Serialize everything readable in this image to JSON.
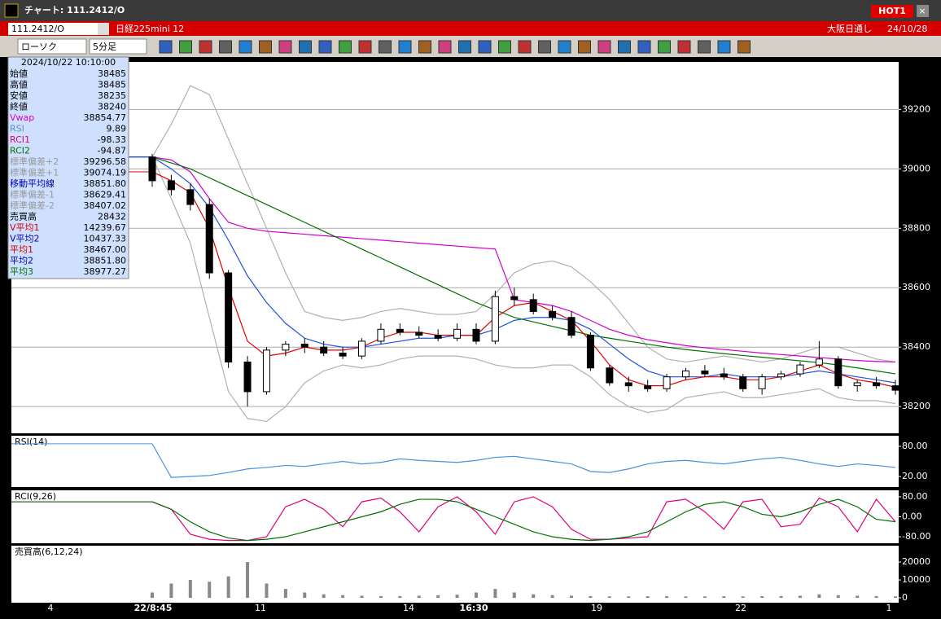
{
  "window": {
    "title": "チャート: 111.2412/O",
    "hot": "HOT1",
    "symbol": "111.2412/O",
    "name": "日経225mini 12",
    "session": "大阪日通し",
    "date": "24/10/28",
    "chart_type": "ローソク",
    "interval": "5分足"
  },
  "info": {
    "datetime": "2024/10/22  10:10:00",
    "rows": [
      {
        "label": "始値",
        "value": "38485",
        "color": "#000"
      },
      {
        "label": "高値",
        "value": "38485",
        "color": "#000"
      },
      {
        "label": "安値",
        "value": "38235",
        "color": "#000"
      },
      {
        "label": "終値",
        "value": "38240",
        "color": "#000"
      },
      {
        "label": "Vwap",
        "value": "38854.77",
        "color": "#d000d0"
      },
      {
        "label": "RSI",
        "value": "9.89",
        "color": "#5a8fd0"
      },
      {
        "label": "RCI1",
        "value": "-98.33",
        "color": "#e0007a"
      },
      {
        "label": "RCI2",
        "value": "-94.87",
        "color": "#007000"
      },
      {
        "label": "標準偏差+2",
        "value": "39296.58",
        "color": "#999"
      },
      {
        "label": "標準偏差+1",
        "value": "39074.19",
        "color": "#999"
      },
      {
        "label": "移動平均線",
        "value": "38851.80",
        "color": "#0000c0"
      },
      {
        "label": "標準偏差-1",
        "value": "38629.41",
        "color": "#999"
      },
      {
        "label": "標準偏差-2",
        "value": "38407.02",
        "color": "#999"
      },
      {
        "label": "売買高",
        "value": "28432",
        "color": "#000"
      },
      {
        "label": "V平均1",
        "value": "14239.67",
        "color": "#d00000"
      },
      {
        "label": "V平均2",
        "value": "10437.33",
        "color": "#0000c0"
      },
      {
        "label": "平均1",
        "value": "38467.00",
        "color": "#d00000"
      },
      {
        "label": "平均2",
        "value": "38851.80",
        "color": "#0000c0"
      },
      {
        "label": "平均3",
        "value": "38977.27",
        "color": "#007000"
      }
    ]
  },
  "chart_data": [
    {
      "type": "candlestick",
      "open": [
        39040,
        38960,
        38930,
        38880,
        38650,
        38350,
        38250,
        38390,
        38410,
        38400,
        38380,
        38370,
        38420,
        38460,
        38450,
        38440,
        38430,
        38460,
        38420,
        38570,
        38560,
        38520,
        38500,
        38440,
        38330,
        38280,
        38270,
        38260,
        38300,
        38320,
        38310,
        38300,
        38260,
        38300,
        38310,
        38340,
        38360,
        38270,
        38280,
        38270
      ],
      "high": [
        39050,
        38980,
        38950,
        38900,
        38660,
        38370,
        38400,
        38420,
        38430,
        38420,
        38400,
        38430,
        38480,
        38480,
        38470,
        38460,
        38480,
        38480,
        38590,
        38600,
        38580,
        38540,
        38520,
        38450,
        38340,
        38300,
        38290,
        38310,
        38330,
        38340,
        38330,
        38310,
        38310,
        38320,
        38350,
        38420,
        38370,
        38290,
        38300,
        38290
      ],
      "low": [
        38940,
        38910,
        38860,
        38630,
        38330,
        38200,
        38240,
        38370,
        38380,
        38370,
        38360,
        38360,
        38410,
        38440,
        38430,
        38420,
        38420,
        38410,
        38410,
        38540,
        38510,
        38490,
        38430,
        38320,
        38270,
        38250,
        38250,
        38250,
        38290,
        38300,
        38290,
        38250,
        38240,
        38290,
        38300,
        38330,
        38260,
        38250,
        38260,
        38240
      ],
      "close": [
        38960,
        38930,
        38880,
        38650,
        38350,
        38250,
        38390,
        38410,
        38400,
        38380,
        38370,
        38420,
        38460,
        38450,
        38440,
        38430,
        38460,
        38420,
        38570,
        38560,
        38520,
        38500,
        38440,
        38330,
        38280,
        38270,
        38260,
        38300,
        38320,
        38310,
        38300,
        38260,
        38300,
        38310,
        38340,
        38360,
        38270,
        38280,
        38270,
        38255
      ],
      "series": [
        {
          "color": "#b0b0b0",
          "values": [
            39040,
            39150,
            39280,
            39250,
            39100,
            38950,
            38800,
            38650,
            38520,
            38500,
            38490,
            38500,
            38520,
            38530,
            38520,
            38510,
            38510,
            38520,
            38580,
            38650,
            38680,
            38690,
            38670,
            38620,
            38560,
            38480,
            38400,
            38360,
            38350,
            38360,
            38370,
            38360,
            38350,
            38360,
            38380,
            38400,
            38400,
            38380,
            38360,
            38350
          ]
        },
        {
          "color": "#b0b0b0",
          "values": [
            39040,
            38900,
            38750,
            38500,
            38250,
            38160,
            38150,
            38200,
            38280,
            38320,
            38340,
            38330,
            38340,
            38360,
            38370,
            38370,
            38370,
            38360,
            38340,
            38330,
            38330,
            38340,
            38340,
            38300,
            38240,
            38200,
            38180,
            38190,
            38230,
            38240,
            38250,
            38230,
            38230,
            38240,
            38250,
            38260,
            38230,
            38220,
            38220,
            38210
          ]
        },
        {
          "color": "#d000d0",
          "values": [
            39040,
            39030,
            38990,
            38900,
            38820,
            38800,
            38790,
            38785,
            38780,
            38775,
            38770,
            38765,
            38760,
            38755,
            38750,
            38745,
            38740,
            38735,
            38730,
            38560,
            38550,
            38540,
            38520,
            38490,
            38460,
            38440,
            38425,
            38415,
            38405,
            38398,
            38392,
            38386,
            38380,
            38375,
            38370,
            38365,
            38360,
            38355,
            38352,
            38350
          ]
        },
        {
          "color": "#007000",
          "values": [
            39040,
            39020,
            39000,
            38970,
            38940,
            38910,
            38880,
            38850,
            38820,
            38790,
            38760,
            38730,
            38700,
            38670,
            38640,
            38610,
            38580,
            38550,
            38525,
            38500,
            38485,
            38470,
            38455,
            38440,
            38430,
            38420,
            38410,
            38400,
            38392,
            38385,
            38378,
            38372,
            38366,
            38360,
            38354,
            38348,
            38340,
            38330,
            38320,
            38310
          ]
        },
        {
          "color": "#2050e0",
          "values": [
            39040,
            39000,
            38950,
            38870,
            38760,
            38640,
            38550,
            38480,
            38430,
            38410,
            38400,
            38400,
            38410,
            38420,
            38430,
            38430,
            38440,
            38440,
            38460,
            38490,
            38500,
            38500,
            38490,
            38460,
            38410,
            38360,
            38320,
            38300,
            38300,
            38300,
            38310,
            38300,
            38300,
            38300,
            38310,
            38320,
            38310,
            38300,
            38290,
            38280
          ]
        },
        {
          "color": "#e00000",
          "values": [
            38990,
            38960,
            38920,
            38800,
            38600,
            38420,
            38370,
            38380,
            38400,
            38390,
            38390,
            38400,
            38430,
            38450,
            38450,
            38440,
            38440,
            38440,
            38500,
            38540,
            38550,
            38520,
            38490,
            38420,
            38340,
            38290,
            38270,
            38270,
            38290,
            38300,
            38300,
            38290,
            38290,
            38300,
            38320,
            38340,
            38310,
            38290,
            38280,
            38265
          ]
        }
      ],
      "ylim": [
        38110,
        39360
      ],
      "yticks": [
        39200,
        39000,
        38800,
        38600,
        38400,
        38200
      ],
      "x_labels": [
        "4",
        "22/8:45",
        "11",
        "14",
        "16:30",
        "19",
        "22",
        "1"
      ]
    },
    {
      "type": "line",
      "title": "RSI(14)",
      "series": [
        {
          "color": "#4a90e0",
          "values": [
            85,
            18,
            20,
            22,
            28,
            35,
            38,
            42,
            40,
            45,
            50,
            45,
            48,
            55,
            52,
            50,
            48,
            52,
            58,
            60,
            55,
            50,
            45,
            30,
            28,
            35,
            45,
            50,
            52,
            48,
            45,
            50,
            55,
            58,
            52,
            45,
            40,
            45,
            42,
            38
          ]
        }
      ],
      "ylim": [
        -1,
        101
      ],
      "yticks": [
        {
          "value": 80,
          "label": "80.00"
        },
        {
          "value": 20,
          "label": "20.00"
        }
      ]
    },
    {
      "type": "line",
      "title": "RCI(9,26)",
      "series": [
        {
          "color": "#e0007a",
          "values": [
            60,
            30,
            -70,
            -90,
            -95,
            -95,
            -80,
            40,
            70,
            30,
            -40,
            60,
            75,
            20,
            -60,
            40,
            80,
            20,
            -70,
            60,
            80,
            40,
            -50,
            -90,
            -90,
            -85,
            -80,
            60,
            70,
            20,
            -50,
            60,
            70,
            -40,
            -30,
            75,
            40,
            -60,
            70,
            -20
          ]
        },
        {
          "color": "#007000",
          "values": [
            60,
            30,
            -20,
            -60,
            -85,
            -95,
            -90,
            -80,
            -60,
            -40,
            -20,
            0,
            20,
            50,
            70,
            70,
            60,
            30,
            0,
            -30,
            -60,
            -80,
            -90,
            -95,
            -90,
            -80,
            -60,
            -20,
            20,
            50,
            60,
            40,
            10,
            0,
            20,
            50,
            70,
            40,
            -10,
            -20
          ]
        }
      ],
      "ylim": [
        -106,
        106
      ],
      "yticks": [
        {
          "value": 80,
          "label": "80.00"
        },
        {
          "value": 0,
          "label": "0.00"
        },
        {
          "value": -80,
          "label": "-80.00"
        }
      ]
    },
    {
      "type": "bar",
      "title": "売買高(6,12,24)",
      "color": "#888888",
      "values": [
        3000,
        8000,
        10000,
        9000,
        12000,
        20000,
        8000,
        5000,
        3000,
        2000,
        1500,
        1200,
        1000,
        1000,
        1200,
        1500,
        1800,
        3000,
        5000,
        3000,
        2000,
        1500,
        1200,
        1000,
        800,
        800,
        900,
        900,
        800,
        800,
        900,
        800,
        900,
        1000,
        1200,
        2000,
        1500,
        1200,
        1000,
        800
      ],
      "ylim": [
        -2700,
        29100
      ],
      "yticks": [
        20000,
        10000,
        0
      ]
    }
  ]
}
